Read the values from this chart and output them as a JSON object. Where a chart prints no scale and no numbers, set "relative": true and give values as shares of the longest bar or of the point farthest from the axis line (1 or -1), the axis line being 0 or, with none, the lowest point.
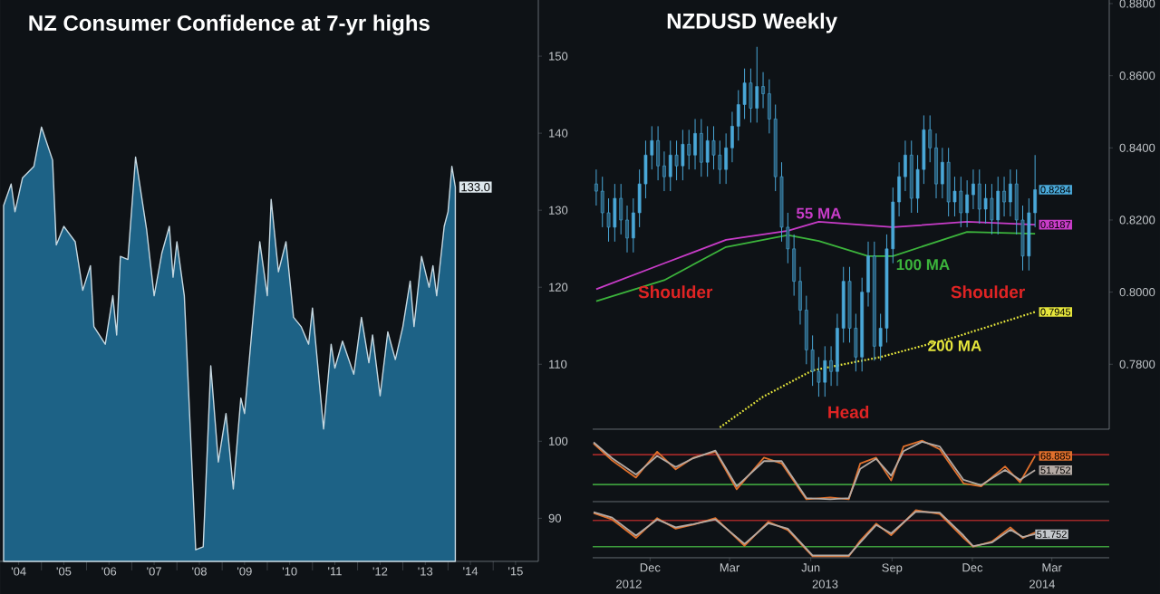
{
  "chart_data": [
    {
      "type": "area",
      "title": "NZ Consumer Confidence at 7-yr highs",
      "color": "#1d6286",
      "x": [
        "2004-03",
        "2004-05",
        "2004-06",
        "2004-08",
        "2004-11",
        "2005-01",
        "2005-04",
        "2005-05",
        "2005-07",
        "2005-10",
        "2005-12",
        "2006-02",
        "2006-03",
        "2006-06",
        "2006-08",
        "2006-09",
        "2006-10",
        "2006-12",
        "2007-02",
        "2007-05",
        "2007-07",
        "2007-09",
        "2007-11",
        "2007-12",
        "2008-01",
        "2008-03",
        "2008-06",
        "2008-08",
        "2008-10",
        "2008-12",
        "2009-02",
        "2009-04",
        "2009-06",
        "2009-07",
        "2009-11",
        "2010-01",
        "2010-02",
        "2010-04",
        "2010-06",
        "2010-08",
        "2010-10",
        "2010-12",
        "2011-01",
        "2011-04",
        "2011-06",
        "2011-07",
        "2011-09",
        "2011-12",
        "2012-02",
        "2012-04",
        "2012-05",
        "2012-07",
        "2012-09",
        "2012-11",
        "2013-01",
        "2013-03",
        "2013-04",
        "2013-06",
        "2013-08",
        "2013-09",
        "2013-10",
        "2013-12",
        "2014-01",
        "2014-02",
        "2014-03"
      ],
      "values": [
        130.6,
        133.4,
        129.8,
        134.2,
        135.7,
        140.8,
        136.5,
        125.5,
        127.9,
        125.9,
        119.6,
        122.8,
        114.9,
        112.6,
        118.9,
        113.8,
        124.0,
        123.6,
        136.9,
        127.5,
        118.9,
        124.4,
        127.9,
        121.3,
        125.9,
        118.9,
        85.9,
        86.3,
        109.8,
        97.3,
        103.6,
        93.8,
        105.6,
        103.6,
        125.9,
        118.9,
        131.4,
        122.0,
        125.9,
        116.1,
        114.9,
        112.6,
        117.3,
        101.6,
        112.6,
        109.5,
        113.0,
        108.7,
        116.1,
        110.2,
        113.8,
        105.9,
        114.2,
        110.6,
        114.9,
        120.8,
        114.9,
        124.0,
        120.0,
        122.8,
        118.9,
        127.9,
        129.8,
        135.7,
        133.0
      ],
      "value_labels": [
        null,
        null,
        null,
        null,
        null,
        null,
        null,
        null,
        null,
        null,
        null,
        null,
        null,
        null,
        null,
        null,
        null,
        null,
        null,
        null,
        null,
        null,
        null,
        null,
        null,
        null,
        null,
        null,
        null,
        null,
        null,
        null,
        null,
        null,
        null,
        null,
        null,
        null,
        null,
        null,
        null,
        null,
        null,
        null,
        null,
        null,
        null,
        null,
        null,
        null,
        null,
        null,
        null,
        null,
        null,
        null,
        null,
        null,
        null,
        null,
        null,
        null,
        null,
        null,
        "133.0"
      ],
      "xlim": [
        "2004-02",
        "2016-01"
      ],
      "ylim": [
        84.4,
        157.3
      ],
      "xticks": [
        {
          "value": "2004-07",
          "label": "'04"
        },
        {
          "value": "2005-07",
          "label": "'05"
        },
        {
          "value": "2006-07",
          "label": "'06"
        },
        {
          "value": "2007-07",
          "label": "'07"
        },
        {
          "value": "2008-07",
          "label": "'08"
        },
        {
          "value": "2009-07",
          "label": "'09"
        },
        {
          "value": "2010-07",
          "label": "'10"
        },
        {
          "value": "2011-07",
          "label": "'11"
        },
        {
          "value": "2012-07",
          "label": "'12"
        },
        {
          "value": "2013-07",
          "label": "'13"
        },
        {
          "value": "2014-07",
          "label": "'14"
        },
        {
          "value": "2015-07",
          "label": "'15"
        },
        {
          "value": "2005-01",
          "label": null
        },
        {
          "value": "2006-01",
          "label": null
        },
        {
          "value": "2007-01",
          "label": null
        },
        {
          "value": "2008-01",
          "label": null
        },
        {
          "value": "2009-01",
          "label": null
        },
        {
          "value": "2010-01",
          "label": null
        },
        {
          "value": "2011-01",
          "label": null
        },
        {
          "value": "2012-01",
          "label": null
        },
        {
          "value": "2013-01",
          "label": null
        },
        {
          "value": "2014-01",
          "label": null
        },
        {
          "value": "2015-01",
          "label": null
        }
      ],
      "yticks": [
        90,
        100,
        110,
        120,
        130,
        140,
        150
      ]
    },
    {
      "type": "candlestick",
      "title": "NZDUSD Weekly",
      "color": "#4aa8d8",
      "x": [
        "2012-10-01",
        "2012-10-08",
        "2012-10-15",
        "2012-10-22",
        "2012-10-29",
        "2012-11-05",
        "2012-11-12",
        "2012-11-19",
        "2012-11-26",
        "2012-12-03",
        "2012-12-10",
        "2012-12-17",
        "2012-12-24",
        "2012-12-31",
        "2013-01-07",
        "2013-01-14",
        "2013-01-21",
        "2013-01-28",
        "2013-02-04",
        "2013-02-11",
        "2013-02-18",
        "2013-02-25",
        "2013-03-04",
        "2013-03-11",
        "2013-03-18",
        "2013-03-25",
        "2013-04-01",
        "2013-04-08",
        "2013-04-15",
        "2013-04-22",
        "2013-04-29",
        "2013-05-06",
        "2013-05-13",
        "2013-05-20",
        "2013-05-27",
        "2013-06-03",
        "2013-06-10",
        "2013-06-17",
        "2013-06-24",
        "2013-07-01",
        "2013-07-08",
        "2013-07-15",
        "2013-07-22",
        "2013-07-29",
        "2013-08-05",
        "2013-08-12",
        "2013-08-19",
        "2013-08-26",
        "2013-09-02",
        "2013-09-09",
        "2013-09-16",
        "2013-09-23",
        "2013-09-30",
        "2013-10-07",
        "2013-10-14",
        "2013-10-21",
        "2013-10-28",
        "2013-11-04",
        "2013-11-11",
        "2013-11-18",
        "2013-11-25",
        "2013-12-02",
        "2013-12-09",
        "2013-12-16",
        "2013-12-23",
        "2013-12-30",
        "2014-01-06",
        "2014-01-13",
        "2014-01-20",
        "2014-01-27",
        "2014-02-03",
        "2014-02-10"
      ],
      "ohlc": [
        [
          0.83,
          0.834,
          0.824,
          0.828
        ],
        [
          0.828,
          0.832,
          0.818,
          0.822
        ],
        [
          0.822,
          0.826,
          0.814,
          0.818
        ],
        [
          0.818,
          0.83,
          0.814,
          0.826
        ],
        [
          0.826,
          0.83,
          0.816,
          0.82
        ],
        [
          0.82,
          0.824,
          0.811,
          0.815
        ],
        [
          0.815,
          0.826,
          0.811,
          0.822
        ],
        [
          0.822,
          0.834,
          0.818,
          0.83
        ],
        [
          0.83,
          0.842,
          0.826,
          0.838
        ],
        [
          0.838,
          0.846,
          0.834,
          0.842
        ],
        [
          0.842,
          0.846,
          0.831,
          0.835
        ],
        [
          0.835,
          0.839,
          0.828,
          0.832
        ],
        [
          0.832,
          0.842,
          0.828,
          0.838
        ],
        [
          0.838,
          0.842,
          0.831,
          0.835
        ],
        [
          0.835,
          0.845,
          0.831,
          0.841
        ],
        [
          0.841,
          0.845,
          0.834,
          0.838
        ],
        [
          0.838,
          0.848,
          0.834,
          0.844
        ],
        [
          0.844,
          0.848,
          0.832,
          0.836
        ],
        [
          0.836,
          0.846,
          0.832,
          0.842
        ],
        [
          0.842,
          0.846,
          0.834,
          0.838
        ],
        [
          0.838,
          0.842,
          0.83,
          0.834
        ],
        [
          0.834,
          0.844,
          0.83,
          0.84
        ],
        [
          0.84,
          0.85,
          0.836,
          0.846
        ],
        [
          0.846,
          0.856,
          0.842,
          0.852
        ],
        [
          0.852,
          0.862,
          0.848,
          0.858
        ],
        [
          0.858,
          0.862,
          0.847,
          0.851
        ],
        [
          0.851,
          0.868,
          0.847,
          0.857
        ],
        [
          0.857,
          0.861,
          0.851,
          0.855
        ],
        [
          0.855,
          0.859,
          0.844,
          0.848
        ],
        [
          0.848,
          0.852,
          0.828,
          0.832
        ],
        [
          0.832,
          0.836,
          0.814,
          0.818
        ],
        [
          0.818,
          0.822,
          0.808,
          0.812
        ],
        [
          0.812,
          0.816,
          0.799,
          0.803
        ],
        [
          0.803,
          0.807,
          0.791,
          0.795
        ],
        [
          0.795,
          0.799,
          0.78,
          0.784
        ],
        [
          0.784,
          0.788,
          0.774,
          0.778
        ],
        [
          0.778,
          0.782,
          0.771,
          0.775
        ],
        [
          0.775,
          0.785,
          0.771,
          0.781
        ],
        [
          0.781,
          0.785,
          0.774,
          0.778
        ],
        [
          0.778,
          0.794,
          0.774,
          0.79
        ],
        [
          0.79,
          0.807,
          0.786,
          0.803
        ],
        [
          0.803,
          0.807,
          0.786,
          0.79
        ],
        [
          0.79,
          0.794,
          0.778,
          0.782
        ],
        [
          0.782,
          0.804,
          0.778,
          0.8
        ],
        [
          0.8,
          0.814,
          0.796,
          0.81
        ],
        [
          0.81,
          0.814,
          0.781,
          0.785
        ],
        [
          0.785,
          0.794,
          0.781,
          0.79
        ],
        [
          0.79,
          0.816,
          0.786,
          0.812
        ],
        [
          0.812,
          0.829,
          0.808,
          0.825
        ],
        [
          0.825,
          0.836,
          0.821,
          0.832
        ],
        [
          0.832,
          0.842,
          0.828,
          0.838
        ],
        [
          0.838,
          0.842,
          0.822,
          0.826
        ],
        [
          0.826,
          0.838,
          0.822,
          0.834
        ],
        [
          0.834,
          0.849,
          0.83,
          0.845
        ],
        [
          0.845,
          0.849,
          0.836,
          0.84
        ],
        [
          0.84,
          0.844,
          0.826,
          0.83
        ],
        [
          0.83,
          0.84,
          0.826,
          0.836
        ],
        [
          0.836,
          0.84,
          0.821,
          0.825
        ],
        [
          0.825,
          0.832,
          0.821,
          0.828
        ],
        [
          0.828,
          0.832,
          0.818,
          0.822
        ],
        [
          0.822,
          0.831,
          0.818,
          0.827
        ],
        [
          0.827,
          0.834,
          0.823,
          0.83
        ],
        [
          0.83,
          0.834,
          0.819,
          0.823
        ],
        [
          0.823,
          0.83,
          0.819,
          0.826
        ],
        [
          0.826,
          0.83,
          0.816,
          0.82
        ],
        [
          0.82,
          0.832,
          0.816,
          0.828
        ],
        [
          0.828,
          0.832,
          0.821,
          0.825
        ],
        [
          0.825,
          0.834,
          0.821,
          0.83
        ],
        [
          0.83,
          0.834,
          0.816,
          0.82
        ],
        [
          0.82,
          0.824,
          0.806,
          0.81
        ],
        [
          0.81,
          0.826,
          0.806,
          0.822
        ],
        [
          0.822,
          0.838,
          0.818,
          0.8284
        ]
      ],
      "value_labels": [
        null,
        null,
        null,
        null,
        null,
        null,
        null,
        null,
        null,
        null,
        null,
        null,
        null,
        null,
        null,
        null,
        null,
        null,
        null,
        null,
        null,
        null,
        null,
        null,
        null,
        null,
        null,
        null,
        null,
        null,
        null,
        null,
        null,
        null,
        null,
        null,
        null,
        null,
        null,
        null,
        null,
        null,
        null,
        null,
        null,
        null,
        null,
        null,
        null,
        null,
        null,
        null,
        null,
        null,
        null,
        null,
        null,
        null,
        null,
        null,
        null,
        null,
        null,
        null,
        null,
        null,
        null,
        null,
        null,
        null,
        null,
        "0.8284"
      ],
      "series": [
        {
          "name": "55 MA",
          "type": "line",
          "color": "#c83cc8",
          "x": [
            "2012-10-01",
            "2012-12-17",
            "2013-02-25",
            "2013-05-06",
            "2013-06-10",
            "2013-09-02",
            "2013-11-25",
            "2014-02-10"
          ],
          "values": [
            0.8008,
            0.808,
            0.8145,
            0.817,
            0.8195,
            0.818,
            0.8195,
            0.8187
          ],
          "value_labels": [
            null,
            null,
            null,
            null,
            null,
            null,
            null,
            "0.8187"
          ]
        },
        {
          "name": "100 MA",
          "type": "line",
          "color": "#3cb43c",
          "x": [
            "2012-10-01",
            "2012-12-17",
            "2013-02-25",
            "2013-05-06",
            "2013-06-10",
            "2013-08-05",
            "2013-09-02",
            "2013-11-25",
            "2014-02-10"
          ],
          "values": [
            0.7975,
            0.8033,
            0.8125,
            0.8158,
            0.8142,
            0.81,
            0.81,
            0.8167,
            0.8162
          ]
        },
        {
          "name": "200 MA",
          "type": "line",
          "color": "#e6e63c",
          "line_style": "dotted",
          "x": [
            "2013-02-18",
            "2013-04-08",
            "2013-06-03",
            "2013-08-19",
            "2013-11-11",
            "2014-02-10"
          ],
          "values": [
            0.7625,
            0.771,
            0.7783,
            0.782,
            0.7875,
            0.7945
          ],
          "value_labels": [
            null,
            null,
            null,
            null,
            null,
            "0.7945"
          ]
        }
      ],
      "annotations": [
        "Shoulder",
        "Head",
        "Shoulder"
      ],
      "xlim": [
        "2012-09-27",
        "2014-05-05"
      ],
      "ylim": [
        0.762,
        0.881
      ],
      "yticks": [
        {
          "value": 0.78,
          "label": "0.7800"
        },
        {
          "value": 0.8,
          "label": "0.8000"
        },
        {
          "value": 0.82,
          "label": "0.8200"
        },
        {
          "value": 0.84,
          "label": "0.8400"
        },
        {
          "value": 0.86,
          "label": "0.8600"
        },
        {
          "value": 0.88,
          "label": "0.8800"
        }
      ],
      "tick_labels": "y"
    },
    {
      "type": "line",
      "xlim": [
        "2012-09-27",
        "2014-05-05"
      ],
      "tick_labels": false,
      "series": [
        {
          "type": "line",
          "color": "#e0702c",
          "x": [
            "2012-09-28",
            "2012-10-19",
            "2012-11-15",
            "2012-12-09",
            "2012-12-30",
            "2013-01-19",
            "2013-02-13",
            "2013-03-09",
            "2013-04-09",
            "2013-04-29",
            "2013-05-27",
            "2013-06-23",
            "2013-07-14",
            "2013-07-27",
            "2013-08-14",
            "2013-08-31",
            "2013-09-14",
            "2013-10-05",
            "2013-10-25",
            "2013-11-21",
            "2013-12-11",
            "2014-01-07",
            "2014-01-24",
            "2014-02-10"
          ],
          "values": [
            83.9,
            63.4,
            42.9,
            74.0,
            52.8,
            66.9,
            74.0,
            28.8,
            66.9,
            59.9,
            16.8,
            18.9,
            16.8,
            59.9,
            66.9,
            39.4,
            80.3,
            87.4,
            76.8,
            35.9,
            32.4,
            56.3,
            37.3,
            68.885
          ],
          "value_labels": [
            null,
            null,
            null,
            null,
            null,
            null,
            null,
            null,
            null,
            null,
            null,
            null,
            null,
            null,
            null,
            null,
            null,
            null,
            null,
            null,
            null,
            null,
            null,
            "68.885"
          ]
        },
        {
          "type": "line",
          "color": "#b4aaa4",
          "x": [
            "2012-09-28",
            "2012-10-19",
            "2012-11-15",
            "2012-12-09",
            "2012-12-30",
            "2013-01-19",
            "2013-02-13",
            "2013-03-09",
            "2013-04-09",
            "2013-04-29",
            "2013-05-27",
            "2013-06-23",
            "2013-07-14",
            "2013-07-27",
            "2013-08-14",
            "2013-08-31",
            "2013-09-14",
            "2013-10-05",
            "2013-10-25",
            "2013-11-21",
            "2013-12-11",
            "2014-01-07",
            "2014-01-24",
            "2014-02-10"
          ],
          "values": [
            85.3,
            66.2,
            46.5,
            69.0,
            55.6,
            66.2,
            75.4,
            32.4,
            62.7,
            62.7,
            18.2,
            16.8,
            18.2,
            53.5,
            65.5,
            45.1,
            74.7,
            86.0,
            80.3,
            40.1,
            33.8,
            52.1,
            40.1,
            51.752
          ],
          "value_labels": [
            null,
            null,
            null,
            null,
            null,
            null,
            null,
            null,
            null,
            null,
            null,
            null,
            null,
            null,
            null,
            null,
            null,
            null,
            null,
            null,
            null,
            null,
            null,
            "51.752"
          ]
        }
      ],
      "ref_lines": [
        {
          "axis": "y",
          "value": 70.5,
          "color": "#a02828"
        },
        {
          "axis": "y",
          "value": 34.5,
          "color": "#3c9c3c"
        }
      ]
    },
    {
      "type": "line",
      "relative": true,
      "xlim": [
        "2012-09-27",
        "2014-05-05"
      ],
      "tick_labels": "x",
      "xticks": [
        {
          "value": "2012-12-01",
          "label": "Dec"
        },
        {
          "value": "2013-03-01",
          "label": "Mar"
        },
        {
          "value": "2013-06-01",
          "label": "Jun"
        },
        {
          "value": "2013-09-01",
          "label": "Sep"
        },
        {
          "value": "2013-12-01",
          "label": "Dec"
        },
        {
          "value": "2014-03-01",
          "label": "Mar"
        }
      ],
      "series": [
        {
          "type": "line",
          "color": "#e0702c",
          "x": [
            "2012-09-28",
            "2012-10-19",
            "2012-11-15",
            "2012-12-09",
            "2012-12-30",
            "2013-01-19",
            "2013-02-13",
            "2013-03-18",
            "2013-04-14",
            "2013-05-06",
            "2013-06-03",
            "2013-07-14",
            "2013-07-27",
            "2013-08-14",
            "2013-08-31",
            "2013-09-28",
            "2013-10-25",
            "2013-11-21",
            "2013-12-02",
            "2013-12-23",
            "2014-01-13",
            "2014-01-27",
            "2014-02-10"
          ],
          "values": [
            0.94,
            0.8,
            0.4,
            0.83,
            0.6,
            0.69,
            0.83,
            0.23,
            0.75,
            0.57,
            0,
            0,
            0.34,
            0.71,
            0.46,
            1,
            0.92,
            0.4,
            0.21,
            0.32,
            0.63,
            0.4,
            0.52
          ]
        },
        {
          "type": "line",
          "color": "#b4aaa4",
          "x": [
            "2012-09-28",
            "2012-10-19",
            "2012-11-15",
            "2012-12-09",
            "2012-12-30",
            "2013-01-19",
            "2013-02-13",
            "2013-03-18",
            "2013-04-14",
            "2013-05-06",
            "2013-06-03",
            "2013-07-14",
            "2013-07-27",
            "2013-08-14",
            "2013-08-31",
            "2013-09-28",
            "2013-10-25",
            "2013-11-21",
            "2013-12-02",
            "2013-12-23",
            "2014-01-13",
            "2014-01-27",
            "2014-02-10"
          ],
          "values": [
            0.96,
            0.84,
            0.45,
            0.8,
            0.63,
            0.7,
            0.8,
            0.27,
            0.72,
            0.6,
            0.02,
            0.02,
            0.3,
            0.68,
            0.5,
            0.97,
            0.95,
            0.45,
            0.22,
            0.3,
            0.58,
            0.42,
            0.48
          ]
        }
      ],
      "ref_lines": [
        {
          "axis": "y",
          "value": 0.78,
          "color": "#a02828"
        },
        {
          "axis": "y",
          "value": 0.21,
          "color": "#3c9c3c"
        }
      ],
      "annotations": [
        "2012",
        "2013",
        "2014",
        "51.752"
      ]
    }
  ]
}
